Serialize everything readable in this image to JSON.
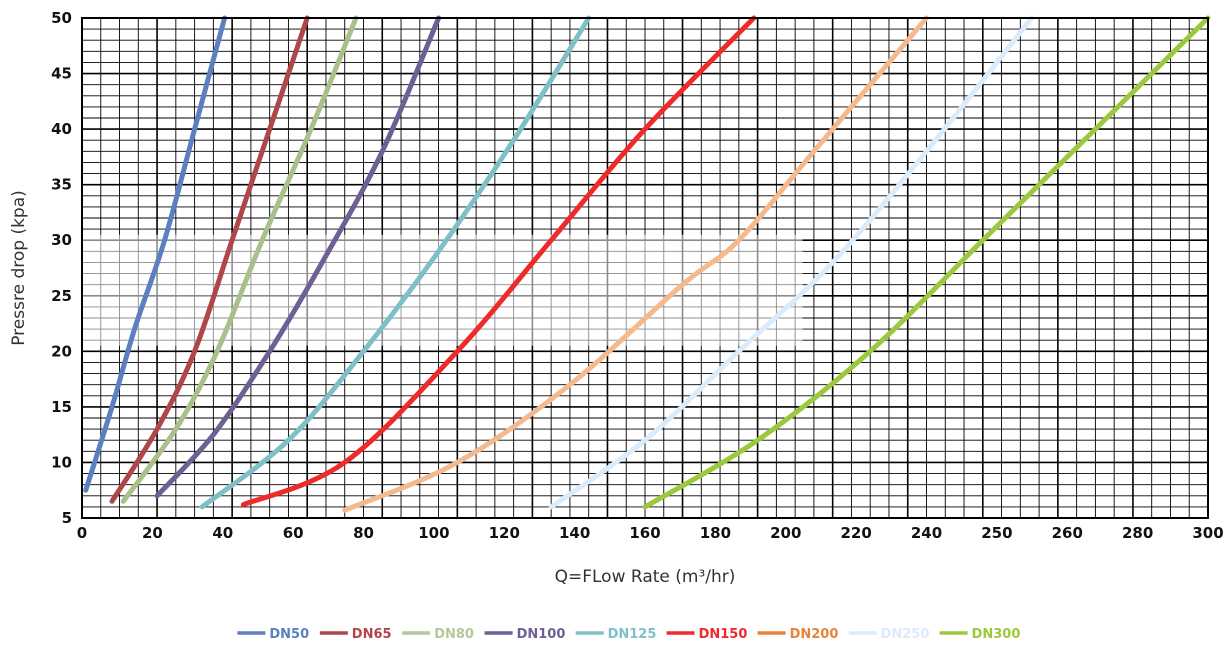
{
  "chart_data": {
    "type": "line",
    "title": "",
    "xlabel": "Q=FLow Rate (m³/hr)",
    "ylabel": "Pressre drop (kpa)",
    "xlim": [
      0,
      300
    ],
    "ylim": [
      5,
      50
    ],
    "x_ticks": [
      "0",
      "20",
      "40",
      "60",
      "80",
      "100",
      "120",
      "140",
      "160",
      "180",
      "200",
      "220",
      "240",
      "250",
      "260",
      "280",
      "300"
    ],
    "y_ticks": [
      "5",
      "10",
      "15",
      "20",
      "25",
      "30",
      "35",
      "40",
      "45",
      "50"
    ],
    "grid": true,
    "legend_position": "bottom",
    "series": [
      {
        "name": "DN50",
        "color": "#5b7fbf",
        "points": [
          [
            1,
            7.5
          ],
          [
            8,
            15
          ],
          [
            14,
            22
          ],
          [
            22,
            30
          ],
          [
            30,
            40
          ],
          [
            38,
            50
          ]
        ]
      },
      {
        "name": "DN65",
        "color": "#b0454a",
        "points": [
          [
            8,
            6.5
          ],
          [
            20,
            13
          ],
          [
            30,
            20
          ],
          [
            40,
            30
          ],
          [
            50,
            40
          ],
          [
            60,
            50
          ]
        ]
      },
      {
        "name": "DN80",
        "color": "#a8c08a",
        "points": [
          [
            11,
            6.5
          ],
          [
            25,
            13
          ],
          [
            36,
            20
          ],
          [
            48,
            30
          ],
          [
            61,
            40
          ],
          [
            73,
            50
          ]
        ]
      },
      {
        "name": "DN100",
        "color": "#6e5f95",
        "points": [
          [
            20,
            7
          ],
          [
            35,
            12.5
          ],
          [
            50,
            20
          ],
          [
            64,
            28
          ],
          [
            80,
            38
          ],
          [
            95,
            50
          ]
        ]
      },
      {
        "name": "DN125",
        "color": "#7fc0c8",
        "points": [
          [
            32,
            6
          ],
          [
            55,
            12
          ],
          [
            75,
            20
          ],
          [
            95,
            29
          ],
          [
            115,
            39
          ],
          [
            135,
            50
          ]
        ]
      },
      {
        "name": "DN150",
        "color": "#ee2a2a",
        "points": [
          [
            43,
            6.2
          ],
          [
            70,
            10
          ],
          [
            100,
            20
          ],
          [
            125,
            30
          ],
          [
            150,
            40
          ],
          [
            179,
            50
          ]
        ]
      },
      {
        "name": "DN200",
        "color": "#f4b98c",
        "points": [
          [
            70,
            5.7
          ],
          [
            100,
            10
          ],
          [
            130,
            17
          ],
          [
            160,
            26
          ],
          [
            175,
            30
          ],
          [
            195,
            38
          ],
          [
            225,
            50
          ]
        ]
      },
      {
        "name": "DN250",
        "color": "#dcebfa",
        "points": [
          [
            125,
            6
          ],
          [
            150,
            12
          ],
          [
            175,
            20
          ],
          [
            200,
            28
          ],
          [
            225,
            38
          ],
          [
            253,
            50
          ]
        ]
      },
      {
        "name": "DN300",
        "color": "#9bc83c",
        "points": [
          [
            150,
            6
          ],
          [
            180,
            12
          ],
          [
            210,
            20
          ],
          [
            240,
            30
          ],
          [
            270,
            40
          ],
          [
            300,
            50
          ]
        ]
      }
    ],
    "legend": [
      {
        "label": "DN50",
        "line_color": "#5b7fbf",
        "text_color": "#5b7fbf"
      },
      {
        "label": "DN65",
        "line_color": "#b0454a",
        "text_color": "#b0454a"
      },
      {
        "label": "DN80",
        "line_color": "#b4c89a",
        "text_color": "#b4c89a"
      },
      {
        "label": "DN100",
        "line_color": "#6e5f95",
        "text_color": "#6e5f95"
      },
      {
        "label": "DN125",
        "line_color": "#7fc0c8",
        "text_color": "#7fc0c8"
      },
      {
        "label": "DN150",
        "line_color": "#ee2a2a",
        "text_color": "#ee2a2a"
      },
      {
        "label": "DN200",
        "line_color": "#e8833a",
        "text_color": "#e8833a"
      },
      {
        "label": "DN250",
        "line_color": "#dcebfa",
        "text_color": "#dcebfa"
      },
      {
        "label": "DN300",
        "line_color": "#9bc83c",
        "text_color": "#9bc83c"
      }
    ]
  }
}
